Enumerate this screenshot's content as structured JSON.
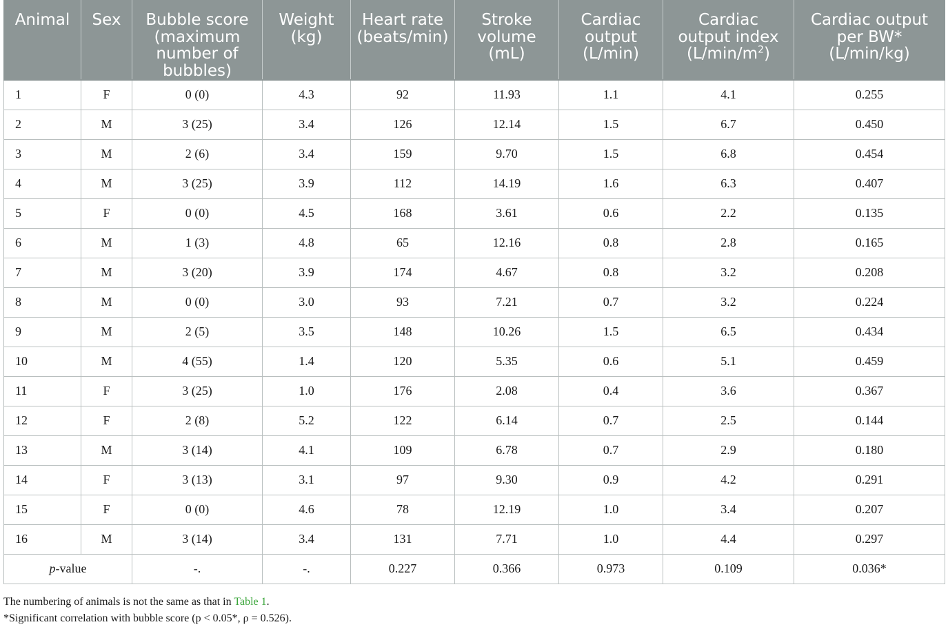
{
  "columns": [
    "Animal",
    "Sex",
    "Bubble score (maximum number of bubbles)",
    "Weight (kg)",
    "Heart rate (beats/min)",
    "Stroke volume (mL)",
    "Cardiac output (L/min)",
    "Cardiac output index (L/min/m2)",
    "Cardiac output per BW* (L/min/kg)"
  ],
  "header": {
    "animal": "Animal",
    "sex": "Sex",
    "bubble": [
      "Bubble score",
      "(maximum",
      "number of",
      "bubbles)"
    ],
    "weight": [
      "Weight",
      "(kg)"
    ],
    "heart_rate": [
      "Heart rate",
      "(beats/min)"
    ],
    "stroke": [
      "Stroke",
      "volume",
      "(mL)"
    ],
    "co": [
      "Cardiac",
      "output",
      "(L/min)"
    ],
    "coi": [
      "Cardiac",
      "output index",
      "(L/min/m",
      "2",
      ")"
    ],
    "cobw": [
      "Cardiac output",
      "per BW*",
      "(L/min/kg)"
    ]
  },
  "rows": [
    [
      "1",
      "F",
      "0 (0)",
      "4.3",
      "92",
      "11.93",
      "1.1",
      "4.1",
      "0.255"
    ],
    [
      "2",
      "M",
      "3 (25)",
      "3.4",
      "126",
      "12.14",
      "1.5",
      "6.7",
      "0.450"
    ],
    [
      "3",
      "M",
      "2 (6)",
      "3.4",
      "159",
      "9.70",
      "1.5",
      "6.8",
      "0.454"
    ],
    [
      "4",
      "M",
      "3 (25)",
      "3.9",
      "112",
      "14.19",
      "1.6",
      "6.3",
      "0.407"
    ],
    [
      "5",
      "F",
      "0 (0)",
      "4.5",
      "168",
      "3.61",
      "0.6",
      "2.2",
      "0.135"
    ],
    [
      "6",
      "M",
      "1 (3)",
      "4.8",
      "65",
      "12.16",
      "0.8",
      "2.8",
      "0.165"
    ],
    [
      "7",
      "M",
      "3 (20)",
      "3.9",
      "174",
      "4.67",
      "0.8",
      "3.2",
      "0.208"
    ],
    [
      "8",
      "M",
      "0 (0)",
      "3.0",
      "93",
      "7.21",
      "0.7",
      "3.2",
      "0.224"
    ],
    [
      "9",
      "M",
      "2 (5)",
      "3.5",
      "148",
      "10.26",
      "1.5",
      "6.5",
      "0.434"
    ],
    [
      "10",
      "M",
      "4 (55)",
      "1.4",
      "120",
      "5.35",
      "0.6",
      "5.1",
      "0.459"
    ],
    [
      "11",
      "F",
      "3 (25)",
      "1.0",
      "176",
      "2.08",
      "0.4",
      "3.6",
      "0.367"
    ],
    [
      "12",
      "F",
      "2 (8)",
      "5.2",
      "122",
      "6.14",
      "0.7",
      "2.5",
      "0.144"
    ],
    [
      "13",
      "M",
      "3 (14)",
      "4.1",
      "109",
      "6.78",
      "0.7",
      "2.9",
      "0.180"
    ],
    [
      "14",
      "F",
      "3 (13)",
      "3.1",
      "97",
      "9.30",
      "0.9",
      "4.2",
      "0.291"
    ],
    [
      "15",
      "F",
      "0 (0)",
      "4.6",
      "78",
      "12.19",
      "1.0",
      "3.4",
      "0.207"
    ],
    [
      "16",
      "M",
      "3 (14)",
      "3.4",
      "131",
      "7.71",
      "1.0",
      "4.4",
      "0.297"
    ]
  ],
  "pvalue_row": {
    "label_italic": "p",
    "label_rest": "-value",
    "values": [
      "-.",
      "-.",
      "0.227",
      "0.366",
      "0.973",
      "0.109",
      "0.036*"
    ]
  },
  "notes": {
    "note1_text": "The numbering of animals is not the same as that in ",
    "note1_link": "Table 1",
    "note1_end": ".",
    "note2": "*Significant correlation with bubble score (p < 0.05*, ρ = 0.526)."
  },
  "colors": {
    "header_bg": "#8d9696",
    "header_text": "#ffffff",
    "link": "#3aa53a",
    "grid": "#b9bfbf"
  }
}
